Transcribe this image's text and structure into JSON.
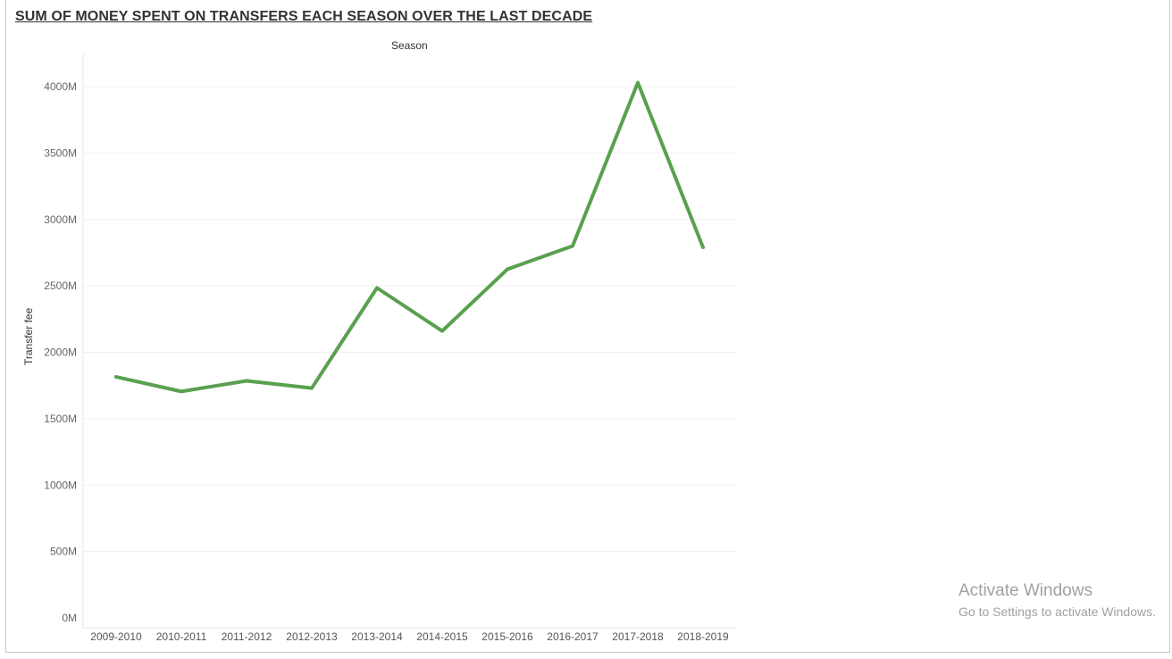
{
  "chart_data": {
    "type": "line",
    "title": "SUM OF MONEY SPENT ON TRANSFERS EACH SEASON OVER THE LAST DECADE",
    "xlabel": "Season",
    "ylabel": "Transfer fee",
    "categories": [
      "2009-2010",
      "2010-2011",
      "2011-2012",
      "2012-2013",
      "2013-2014",
      "2014-2015",
      "2015-2016",
      "2016-2017",
      "2017-2018",
      "2018-2019"
    ],
    "values": [
      1815,
      1705,
      1785,
      1730,
      2485,
      2160,
      2625,
      2800,
      4030,
      2790
    ],
    "value_unit": "M",
    "y_ticks": [
      "0M",
      "500M",
      "1000M",
      "1500M",
      "2000M",
      "2500M",
      "3000M",
      "3500M",
      "4000M"
    ],
    "y_tick_values": [
      0,
      500,
      1000,
      1500,
      2000,
      2500,
      3000,
      3500,
      4000
    ],
    "ylim": [
      0,
      4200
    ],
    "grid": true,
    "line_color": "#59a14f"
  },
  "watermark": {
    "title": "Activate Windows",
    "subtitle": "Go to Settings to activate Windows."
  }
}
